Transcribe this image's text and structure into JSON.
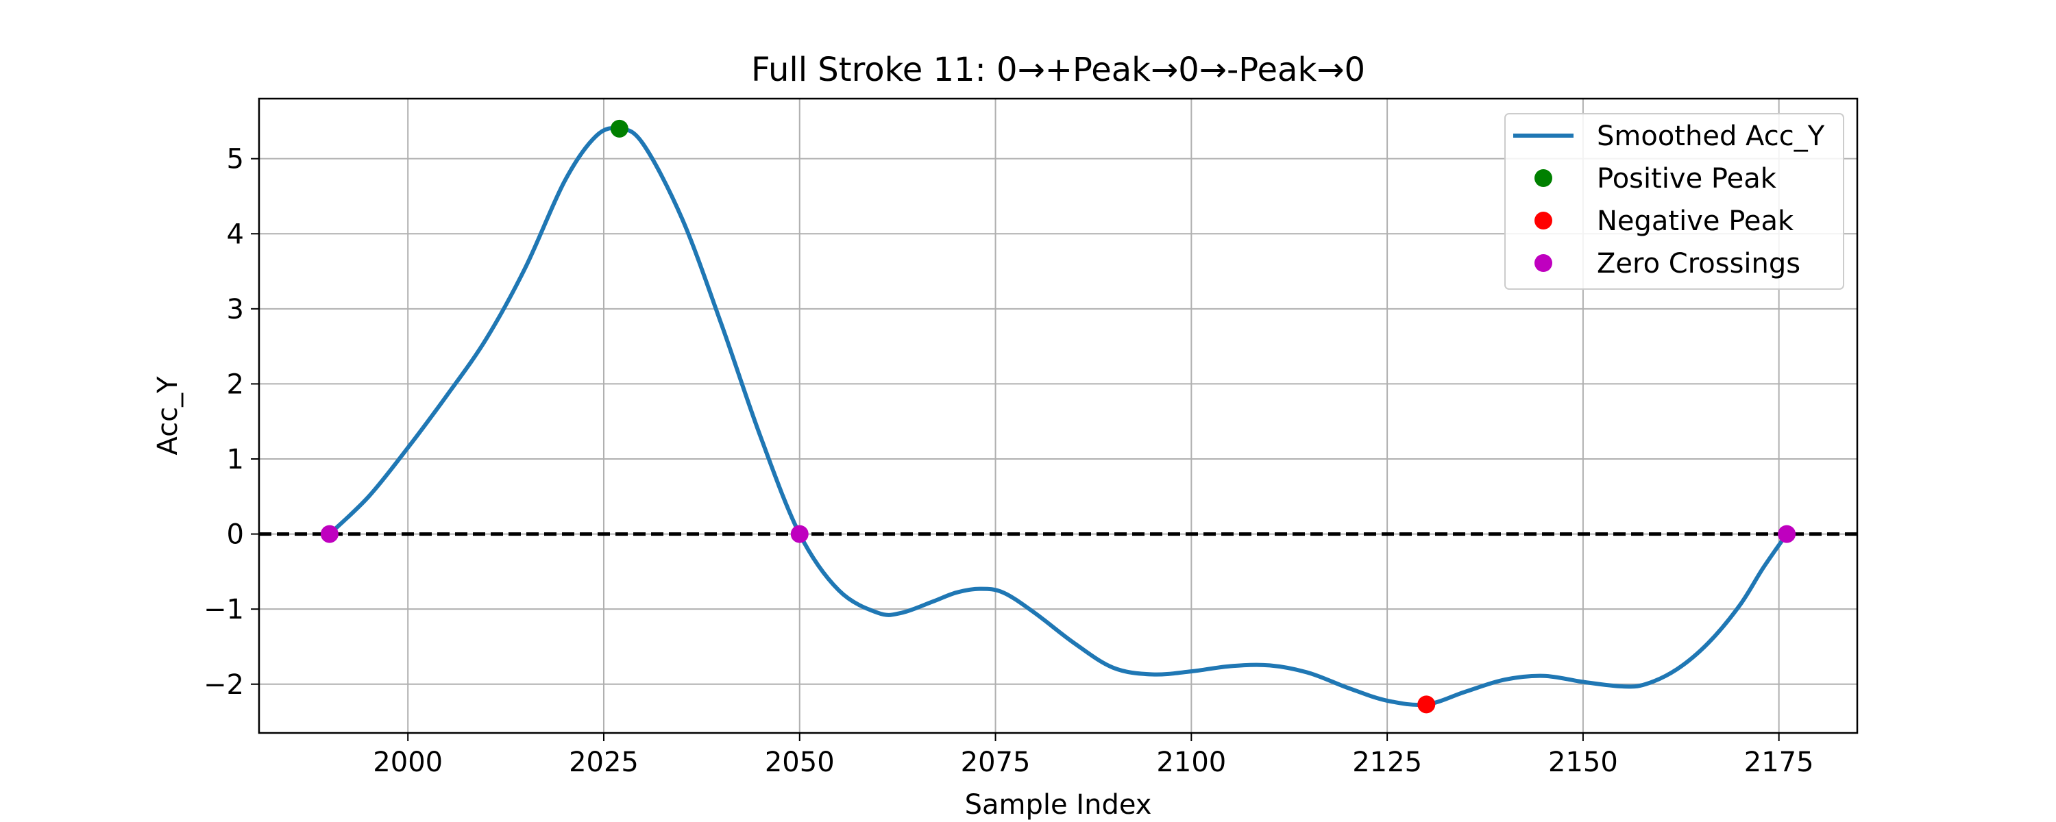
{
  "chart_data": {
    "type": "line",
    "title": "Full Stroke 11: 0→+Peak→0→-Peak→0",
    "xlabel": "Sample Index",
    "ylabel": "Acc_Y",
    "xlim": [
      1981,
      2185
    ],
    "ylim": [
      -2.65,
      5.8
    ],
    "xticks": [
      2000,
      2025,
      2050,
      2075,
      2100,
      2125,
      2150,
      2175
    ],
    "yticks": [
      -2,
      -1,
      0,
      1,
      2,
      3,
      4,
      5
    ],
    "grid": true,
    "legend_position": "top-right",
    "zero_line": {
      "y": 0,
      "style": "dashed",
      "color": "#000000"
    },
    "series": [
      {
        "name": "Smoothed Acc_Y",
        "color": "#1f77b4",
        "x": [
          1990,
          1995,
          2000,
          2005,
          2010,
          2015,
          2020,
          2024,
          2027,
          2030,
          2035,
          2040,
          2045,
          2050,
          2055,
          2060,
          2063,
          2067,
          2070,
          2073,
          2076,
          2080,
          2085,
          2090,
          2095,
          2100,
          2105,
          2110,
          2115,
          2120,
          2125,
          2130,
          2135,
          2140,
          2145,
          2150,
          2155,
          2158,
          2162,
          2166,
          2170,
          2173,
          2176
        ],
        "y": [
          0,
          0.5,
          1.15,
          1.85,
          2.6,
          3.55,
          4.7,
          5.3,
          5.4,
          5.2,
          4.2,
          2.8,
          1.3,
          0,
          -0.75,
          -1.05,
          -1.05,
          -0.9,
          -0.78,
          -0.73,
          -0.78,
          -1.05,
          -1.45,
          -1.78,
          -1.87,
          -1.83,
          -1.76,
          -1.75,
          -1.85,
          -2.05,
          -2.22,
          -2.27,
          -2.1,
          -1.94,
          -1.89,
          -1.97,
          -2.03,
          -2.0,
          -1.8,
          -1.45,
          -0.95,
          -0.45,
          0
        ]
      }
    ],
    "markers": [
      {
        "name": "Positive Peak",
        "color": "#008000",
        "points": [
          [
            2027,
            5.4
          ]
        ]
      },
      {
        "name": "Negative Peak",
        "color": "#ff0000",
        "points": [
          [
            2130,
            -2.27
          ]
        ]
      },
      {
        "name": "Zero Crossings",
        "color": "#bf00bf",
        "points": [
          [
            1990,
            0
          ],
          [
            2050,
            0
          ],
          [
            2176,
            0
          ]
        ]
      }
    ]
  }
}
